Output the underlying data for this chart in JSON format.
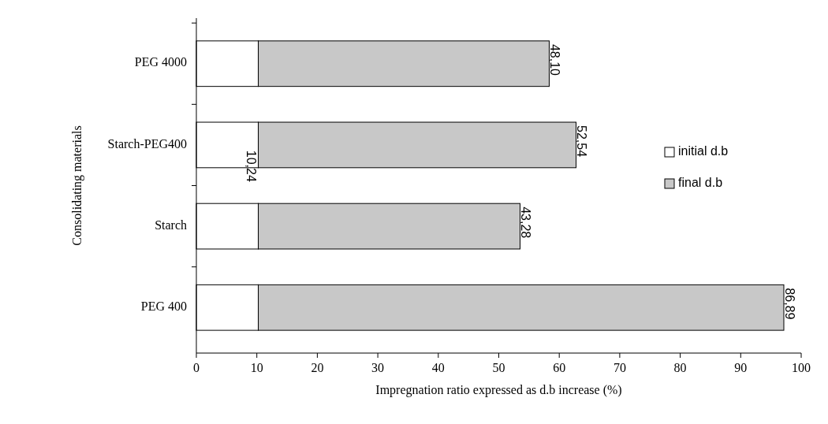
{
  "chart_data": {
    "type": "bar",
    "orientation": "horizontal",
    "stacked": true,
    "xlabel": "Impregnation ratio expressed as d.b increase (%)",
    "ylabel": "Consolidating materials",
    "categories": [
      "PEG 4000",
      "Starch-PEG400",
      "Starch",
      "PEG 400"
    ],
    "series": [
      {
        "name": "initial d.b",
        "color": "#ffffff",
        "values": [
          10.24,
          10.24,
          10.24,
          10.24
        ],
        "value_labels": [
          null,
          "10,24",
          null,
          null
        ]
      },
      {
        "name": "final d.b",
        "color": "#c8c8c8",
        "values": [
          48.1,
          52.54,
          43.28,
          86.89
        ],
        "value_labels": [
          "48,10",
          "52,54",
          "43,28",
          "86,89"
        ]
      }
    ],
    "xlim": [
      0,
      100
    ],
    "xticks": [
      0,
      10,
      20,
      30,
      40,
      50,
      60,
      70,
      80,
      90,
      100
    ],
    "grid": false,
    "legend": "right"
  }
}
